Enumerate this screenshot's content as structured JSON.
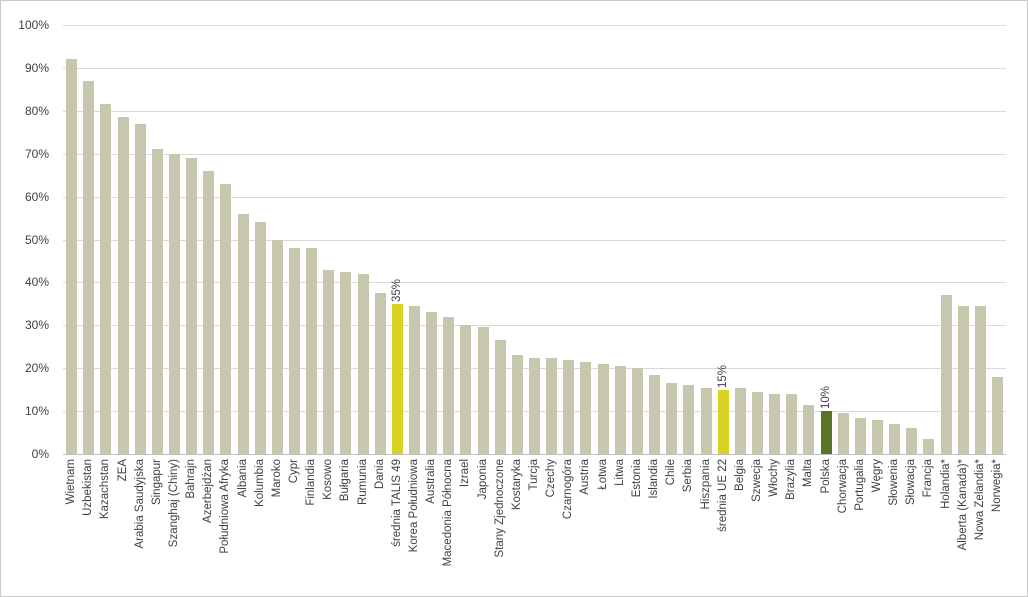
{
  "chart_data": {
    "type": "bar",
    "title": "",
    "xlabel": "",
    "ylabel": "",
    "ylim": [
      0,
      100
    ],
    "y_ticks": [
      "0%",
      "10%",
      "20%",
      "30%",
      "40%",
      "50%",
      "60%",
      "70%",
      "80%",
      "90%",
      "100%"
    ],
    "grid": "horizontal",
    "legend": "none",
    "categories": [
      "Wietnam",
      "Uzbekistan",
      "Kazachstan",
      "ZEA",
      "Arabia Saudyjska",
      "Singapur",
      "Szanghaj (Chiny)",
      "Bahrajn",
      "Azerbejdżan",
      "Południowa Afryka",
      "Albania",
      "Kolumbia",
      "Maroko",
      "Cypr",
      "Finlandia",
      "Kosowo",
      "Bułgaria",
      "Rumunia",
      "Dania",
      "średnia TALIS 49",
      "Korea Południowa",
      "Australia",
      "Macedonia Północna",
      "Izrael",
      "Japonia",
      "Stany Zjednoczone",
      "Kostaryka",
      "Turcja",
      "Czechy",
      "Czarnogóra",
      "Austria",
      "Łotwa",
      "Litwa",
      "Estonia",
      "Islandia",
      "Chile",
      "Serbia",
      "Hiszpania",
      "średnia UE 22",
      "Belgia",
      "Szwecja",
      "Włochy",
      "Brazylia",
      "Malta",
      "Polska",
      "Chorwacja",
      "Portugalia",
      "Węgry",
      "Słowenia",
      "Słowacja",
      "Francja",
      "Holandia*",
      "Alberta (Kanada)*",
      "Nowa Zelandia*",
      "Norwegia*"
    ],
    "values": [
      92,
      87,
      81.5,
      78.5,
      77,
      71,
      70,
      69,
      66,
      63,
      56,
      54,
      50,
      48,
      48,
      43,
      42.5,
      42,
      37.5,
      35,
      34.5,
      33,
      32,
      30,
      29.5,
      26.5,
      23,
      22.5,
      22.5,
      22,
      21.5,
      21,
      20.5,
      20,
      18.5,
      16.5,
      16,
      15.5,
      15,
      15.5,
      14.5,
      14,
      14,
      11.5,
      10,
      9.5,
      8.5,
      8,
      7,
      6,
      3.5,
      37,
      34.5,
      34.5,
      18
    ],
    "highlighted_bars": [
      {
        "index": 19,
        "category": "średnia TALIS 49",
        "value": 35,
        "data_label": "35%",
        "color": "#d8d222"
      },
      {
        "index": 38,
        "category": "średnia UE 22",
        "value": 15,
        "data_label": "15%",
        "color": "#d8d222"
      },
      {
        "index": 44,
        "category": "Polska",
        "value": 10,
        "data_label": "10%",
        "color": "#5a7427"
      }
    ],
    "colors": {
      "bar_default": "#c7c7ad",
      "bar_highlight_average": "#d8d222",
      "bar_highlight_poland": "#5a7427",
      "gridline": "#d9d9d9",
      "axis_line": "#bfbfbf",
      "axis_text": "#404040",
      "frame_border": "#c9c9c9",
      "background": "#ffffff"
    }
  }
}
